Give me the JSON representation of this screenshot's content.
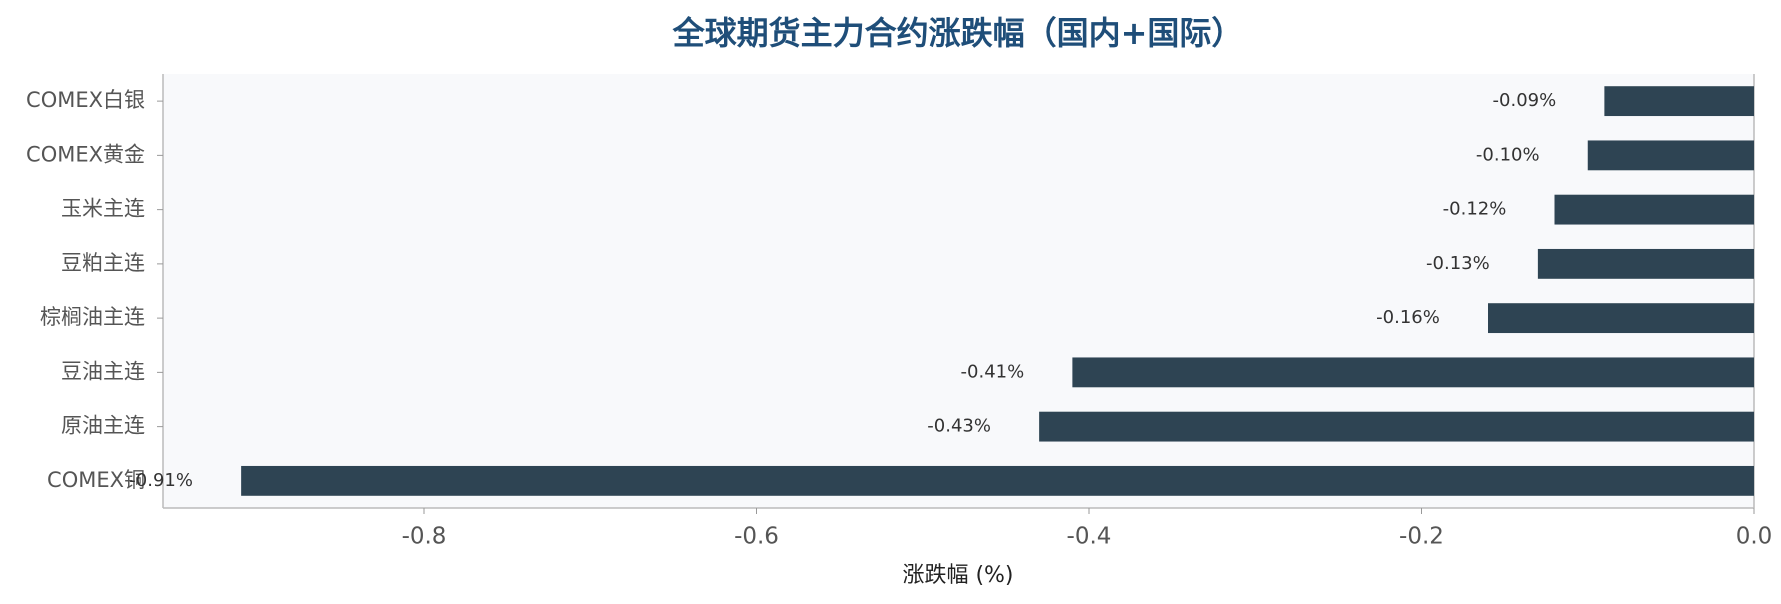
{
  "chart_data": {
    "type": "barh",
    "title": "全球期货主力合约涨跌幅（国内+国际）",
    "xlabel": "涨跌幅 (%)",
    "categories": [
      "COMEX白银",
      "COMEX黄金",
      "玉米主连",
      "豆粕主连",
      "棕榈油主连",
      "豆油主连",
      "原油主连",
      "COMEX铜"
    ],
    "values": [
      -0.09,
      -0.1,
      -0.12,
      -0.13,
      -0.16,
      -0.41,
      -0.43,
      -0.91
    ],
    "value_labels": [
      "-0.09%",
      "-0.10%",
      "-0.12%",
      "-0.13%",
      "-0.16%",
      "-0.41%",
      "-0.43%",
      "-0.91%"
    ],
    "color": "#2e4453",
    "xlim": [
      -0.957,
      0
    ],
    "xticks": [
      -0.8,
      -0.6,
      -0.4,
      -0.2,
      {
        "value": 0,
        "label": "0.0"
      }
    ]
  }
}
